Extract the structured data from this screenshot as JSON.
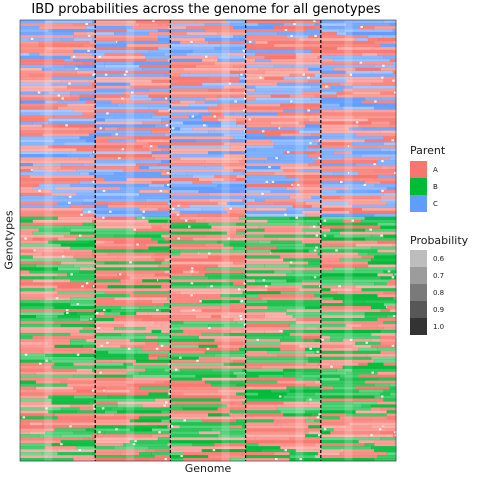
{
  "chart_data": {
    "type": "heatmap",
    "title": "IBD probabilities across the genome for all genotypes",
    "xlabel": "Genome",
    "ylabel": "Genotypes",
    "chromosome_boundaries_count": 4,
    "segments": 5,
    "genotype_groups": [
      {
        "rows": 66,
        "dominant_parents": [
          "A",
          "C"
        ]
      },
      {
        "rows": 82,
        "dominant_parents": [
          "A",
          "B"
        ]
      }
    ],
    "legend_parent": {
      "title": "Parent",
      "items": [
        {
          "label": "A",
          "color": "#f8766d"
        },
        {
          "label": "B",
          "color": "#00ba38"
        },
        {
          "label": "C",
          "color": "#619cff"
        }
      ]
    },
    "legend_probability": {
      "title": "Probability",
      "items": [
        {
          "label": "0.6",
          "value": 0.6,
          "color": "#bdbdbd"
        },
        {
          "label": "0.7",
          "value": 0.7,
          "color": "#9c9c9c"
        },
        {
          "label": "0.8",
          "value": 0.8,
          "color": "#7a7a7a"
        },
        {
          "label": "0.9",
          "value": 0.9,
          "color": "#575757"
        },
        {
          "label": "1.0",
          "value": 1.0,
          "color": "#333333"
        }
      ]
    }
  }
}
